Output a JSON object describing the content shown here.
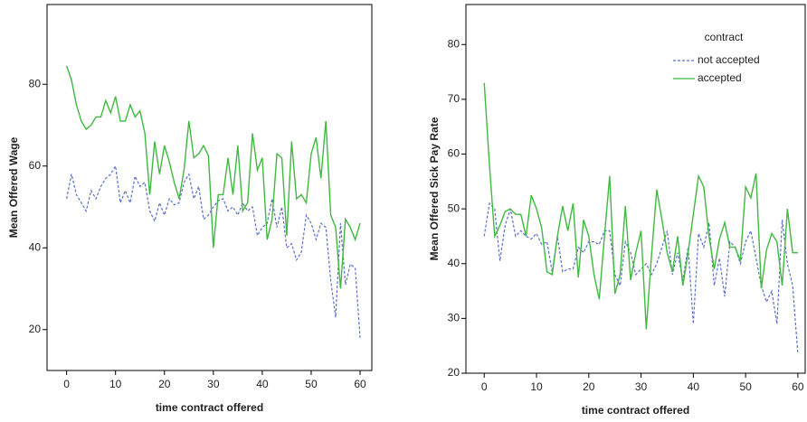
{
  "chart_data": [
    {
      "type": "line",
      "xlabel": "time contract offered",
      "ylabel": "Mean Offered Wage",
      "xlim": [
        -4,
        62.4
      ],
      "ylim": [
        10,
        99.5
      ],
      "xticks": [
        0,
        10,
        20,
        30,
        40,
        50,
        60
      ],
      "yticks": [
        20,
        40,
        60,
        80
      ],
      "x": [
        0,
        1,
        2,
        3,
        4,
        5,
        6,
        7,
        8,
        9,
        10,
        11,
        12,
        13,
        14,
        15,
        16,
        17,
        18,
        19,
        20,
        21,
        22,
        23,
        24,
        25,
        26,
        27,
        28,
        29,
        30,
        31,
        32,
        33,
        34,
        35,
        36,
        37,
        38,
        39,
        40,
        41,
        42,
        43,
        44,
        45,
        46,
        47,
        48,
        49,
        50,
        51,
        52,
        53,
        54,
        55,
        56,
        57,
        58,
        59,
        60
      ],
      "series": [
        {
          "color": "#5b6fc8",
          "dashed": true,
          "values": [
            52,
            58,
            53,
            51,
            49,
            54,
            52,
            55,
            57,
            58,
            60,
            51,
            54,
            51,
            57.5,
            55,
            56,
            49,
            46.5,
            51,
            48,
            52,
            50.5,
            51,
            56,
            58,
            52,
            55,
            47,
            48,
            50,
            51.5,
            52,
            49,
            50,
            48,
            51,
            49,
            50,
            43,
            45,
            46,
            52,
            45,
            50,
            40,
            41,
            37,
            39,
            48,
            46,
            42,
            46,
            45,
            32,
            23,
            46,
            31,
            36,
            35,
            18
          ]
        },
        {
          "color": "#3fb93f",
          "dashed": false,
          "values": [
            84.5,
            81,
            75,
            71,
            69,
            70,
            72,
            72,
            76,
            73,
            77,
            71,
            71,
            75,
            72,
            73.5,
            68,
            53,
            66,
            58,
            65,
            61,
            56,
            52,
            59,
            71,
            62,
            63,
            65,
            62.5,
            40,
            53,
            53,
            62,
            53,
            65,
            49,
            51,
            68,
            59,
            62,
            42,
            47,
            63,
            62,
            43,
            66,
            52,
            53,
            51,
            63,
            67,
            57,
            71,
            48,
            45,
            30,
            47,
            45,
            42,
            46
          ]
        }
      ]
    },
    {
      "type": "line",
      "xlabel": "time contract offered",
      "ylabel": "Mean Offered Sick Pay Rate",
      "xlim": [
        -3.5,
        61.4
      ],
      "ylim": [
        20,
        87.3
      ],
      "xticks": [
        0,
        10,
        20,
        30,
        40,
        50,
        60
      ],
      "yticks": [
        20,
        30,
        40,
        50,
        60,
        70,
        80
      ],
      "legend": {
        "title": "contract",
        "position": "upper right"
      },
      "x": [
        0,
        1,
        2,
        3,
        4,
        5,
        6,
        7,
        8,
        9,
        10,
        11,
        12,
        13,
        14,
        15,
        16,
        17,
        18,
        19,
        20,
        21,
        22,
        23,
        24,
        25,
        26,
        27,
        28,
        29,
        30,
        31,
        32,
        33,
        34,
        35,
        36,
        37,
        38,
        39,
        40,
        41,
        42,
        43,
        44,
        45,
        46,
        47,
        48,
        49,
        50,
        51,
        52,
        53,
        54,
        55,
        56,
        57,
        58,
        59,
        60
      ],
      "series": [
        {
          "name": "not accepted",
          "color": "#5b6fc8",
          "dashed": true,
          "values": [
            45,
            51,
            50,
            40.5,
            47,
            50,
            45,
            46,
            45,
            44.5,
            45.5,
            43.5,
            44,
            38.5,
            45,
            38.5,
            39,
            39,
            43,
            42,
            44,
            44,
            43.5,
            46,
            46,
            38,
            36,
            44,
            42,
            38,
            39,
            40,
            38,
            40,
            43,
            46,
            38,
            42,
            37,
            43,
            29,
            45.5,
            43,
            47.5,
            36,
            41,
            34,
            44,
            43,
            40,
            44,
            46,
            41,
            36,
            33,
            35,
            29,
            48,
            40,
            36,
            23.5
          ]
        },
        {
          "name": "accepted",
          "color": "#3fb93f",
          "dashed": false,
          "values": [
            73,
            58,
            45,
            47,
            49.5,
            50,
            49,
            49,
            45,
            52.5,
            50,
            46.5,
            38.5,
            38,
            45,
            50.5,
            46,
            51,
            37.5,
            48,
            45,
            38,
            33.5,
            45,
            56,
            34.5,
            38,
            50.5,
            37,
            42,
            46,
            28,
            41.5,
            53.5,
            48,
            42,
            38.5,
            45,
            36,
            42,
            49,
            56,
            54,
            45,
            39,
            44.5,
            47.5,
            43,
            43,
            40.5,
            54,
            52,
            56.5,
            35.5,
            42.5,
            45.5,
            44,
            36,
            50,
            42,
            42
          ]
        }
      ]
    }
  ]
}
